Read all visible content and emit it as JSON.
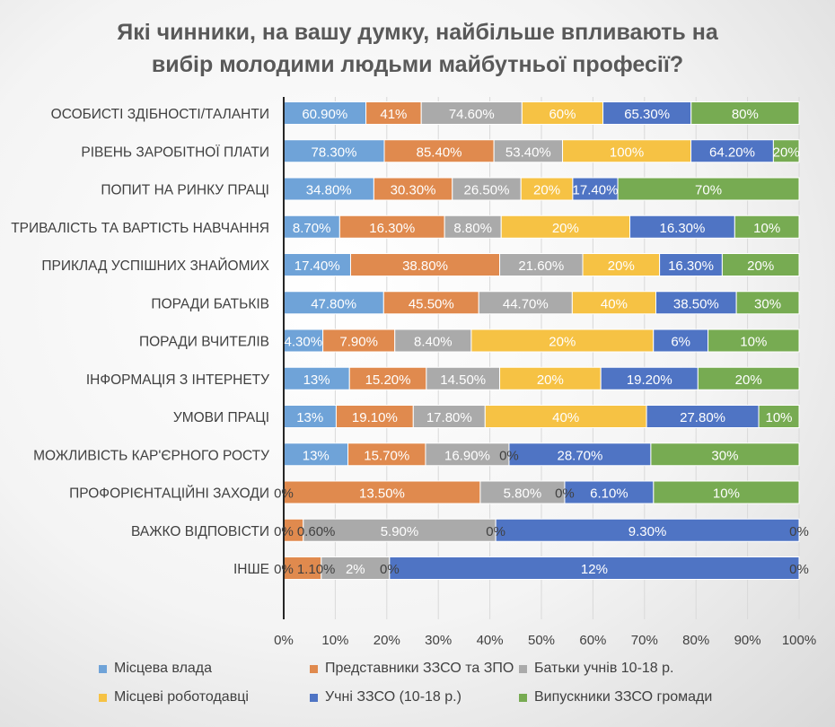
{
  "chart_data": {
    "type": "bar",
    "orientation": "horizontal",
    "stacked": "100%",
    "title": "Які чинники, на вашу думку, найбільше впливають на вибір молодими людьми майбутньої професії?",
    "title_lines": [
      "Які чинники, на вашу думку, найбільше впливають на",
      "вибір молодими людьми майбутньої професії?"
    ],
    "categories": [
      "ОСОБИСТІ ЗДІБНОСТІ/ТАЛАНТИ",
      "РІВЕНЬ ЗАРОБІТНОЇ ПЛАТИ",
      "ПОПИТ НА РИНКУ ПРАЦІ",
      "ТРИВАЛІСТЬ ТА ВАРТІСТЬ НАВЧАННЯ",
      "ПРИКЛАД УСПІШНИХ ЗНАЙОМИХ",
      "ПОРАДИ БАТЬКІВ",
      "ПОРАДИ ВЧИТЕЛІВ",
      "ІНФОРМАЦІЯ З ІНТЕРНЕТУ",
      "УМОВИ ПРАЦІ",
      "МОЖЛИВІСТЬ КАР'ЄРНОГО РОСТУ",
      "ПРОФОРІЄНТАЦІЙНІ ЗАХОДИ",
      "ВАЖКО ВІДПОВІСТИ",
      "ІНШЕ"
    ],
    "series": [
      {
        "name": "Місцева влада",
        "color": "#6fa3d8",
        "values": [
          60.9,
          78.3,
          34.8,
          8.7,
          17.4,
          47.8,
          4.3,
          13,
          13,
          13,
          0,
          0,
          0
        ],
        "labels": [
          "60.90%",
          "78.30%",
          "34.80%",
          "8.70%",
          "17.40%",
          "47.80%",
          "4.30%",
          "13%",
          "13%",
          "13%",
          "0%",
          "0%",
          "0%"
        ]
      },
      {
        "name": "Представники ЗЗСО та ЗПО",
        "color": "#e08a4e",
        "values": [
          41,
          85.4,
          30.3,
          16.3,
          38.8,
          45.5,
          7.9,
          15.2,
          19.1,
          15.7,
          13.5,
          0.6,
          1.1
        ],
        "labels": [
          "41%",
          "85.40%",
          "30.30%",
          "16.30%",
          "38.80%",
          "45.50%",
          "7.90%",
          "15.20%",
          "19.10%",
          "15.70%",
          "13.50%",
          "0.60%",
          "1.10%"
        ]
      },
      {
        "name": "Батьки учнів 10-18 р.",
        "color": "#aaaaaa",
        "values": [
          74.6,
          53.4,
          26.5,
          8.8,
          21.6,
          44.7,
          8.4,
          14.5,
          17.8,
          16.9,
          5.8,
          5.9,
          2
        ],
        "labels": [
          "74.60%",
          "53.40%",
          "26.50%",
          "8.80%",
          "21.60%",
          "44.70%",
          "8.40%",
          "14.50%",
          "17.80%",
          "16.90%",
          "5.80%",
          "5.90%",
          "2%"
        ]
      },
      {
        "name": "Місцеві роботодавці",
        "color": "#f6c244",
        "values": [
          60,
          100,
          20,
          20,
          20,
          40,
          20,
          20,
          40,
          0,
          0,
          0,
          0
        ],
        "labels": [
          "60%",
          "100%",
          "20%",
          "20%",
          "20%",
          "40%",
          "20%",
          "20%",
          "40%",
          "0%",
          "0%",
          "0%",
          "0%"
        ]
      },
      {
        "name": "Учні ЗЗСО (10-18 р.)",
        "color": "#4f74c4",
        "values": [
          65.3,
          64.2,
          17.4,
          16.3,
          16.3,
          38.5,
          6,
          19.2,
          27.8,
          28.7,
          6.1,
          9.3,
          12
        ],
        "labels": [
          "65.30%",
          "64.20%",
          "17.40%",
          "16.30%",
          "16.30%",
          "38.50%",
          "6%",
          "19.20%",
          "27.80%",
          "28.70%",
          "6.10%",
          "9.30%",
          "12%"
        ]
      },
      {
        "name": "Випускники ЗЗСО громади",
        "color": "#77ab52",
        "values": [
          80,
          20,
          70,
          10,
          20,
          30,
          10,
          20,
          10,
          30,
          10,
          0,
          0
        ],
        "labels": [
          "80%",
          "20%",
          "70%",
          "10%",
          "20%",
          "30%",
          "10%",
          "20%",
          "10%",
          "30%",
          "10%",
          "0%",
          "0%"
        ]
      }
    ],
    "xticks": [
      "0%",
      "10%",
      "20%",
      "30%",
      "40%",
      "50%",
      "60%",
      "70%",
      "80%",
      "90%",
      "100%"
    ],
    "xlim": [
      0,
      100
    ],
    "grid": true,
    "legend": "bottom"
  }
}
